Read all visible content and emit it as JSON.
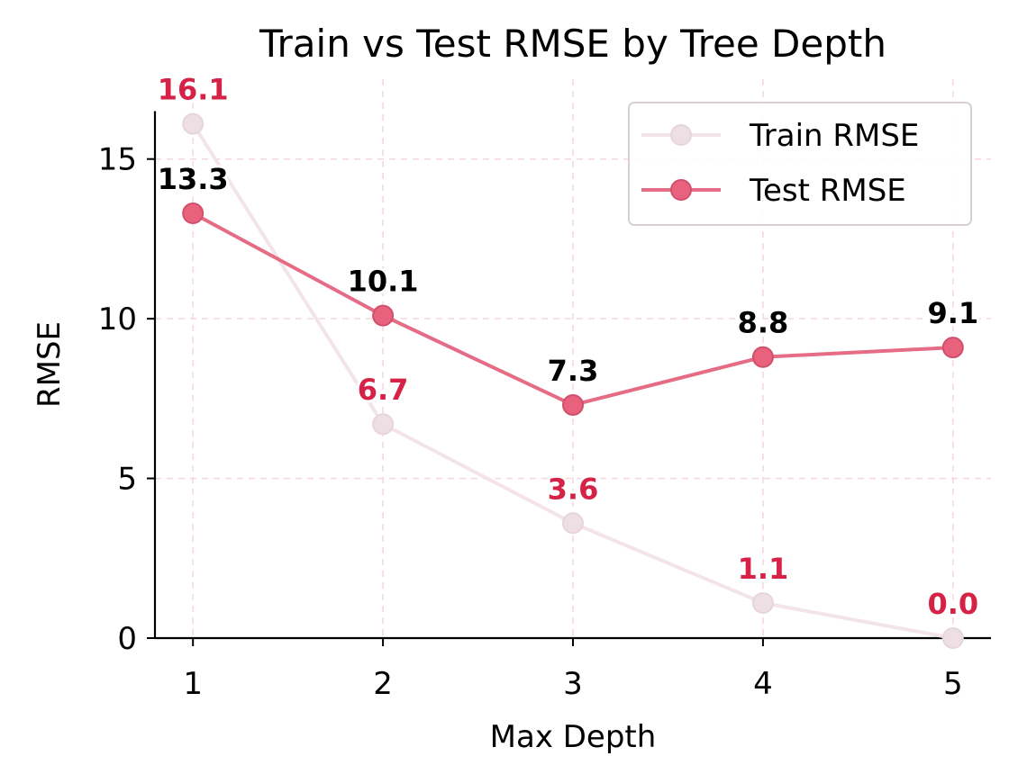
{
  "chart_data": {
    "type": "line",
    "title": "Train vs Test RMSE by Tree Depth",
    "xlabel": "Max Depth",
    "ylabel": "RMSE",
    "x": [
      1,
      2,
      3,
      4,
      5
    ],
    "xlim": [
      0.8,
      5.2
    ],
    "ylim": [
      0,
      17.5
    ],
    "xticks": [
      "1",
      "2",
      "3",
      "4",
      "5"
    ],
    "yticks": [
      0,
      5,
      10,
      15
    ],
    "grid": true,
    "legend_position": "top-right",
    "series": [
      {
        "name": "Train RMSE",
        "values": [
          16.1,
          6.7,
          3.6,
          1.1,
          0.0
        ],
        "labels": [
          "16.1",
          "6.7",
          "3.6",
          "1.1",
          "0.0"
        ],
        "line_color": "#f3e4ea",
        "marker_fill": "#eedfe4",
        "label_color": "#d62246"
      },
      {
        "name": "Test RMSE",
        "values": [
          13.3,
          10.1,
          7.3,
          8.8,
          9.1
        ],
        "labels": [
          "13.3",
          "10.1",
          "7.3",
          "8.8",
          "9.1"
        ],
        "line_color": "#e56c84",
        "marker_fill": "#e8627e",
        "label_color": "#000000"
      }
    ],
    "grid_color": "#f5d6dd",
    "axis_color": "#000000"
  }
}
